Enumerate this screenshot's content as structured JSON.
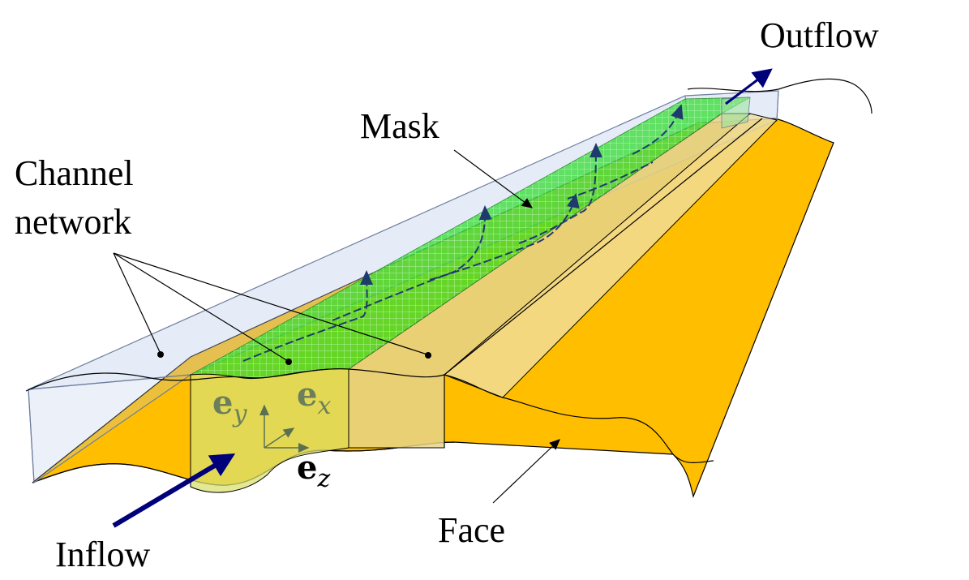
{
  "labels": {
    "outflow": "Outflow",
    "mask": "Mask",
    "channel_line1": "Channel",
    "channel_line2": "network",
    "inflow": "Inflow",
    "face": "Face"
  },
  "vectors": {
    "ey": {
      "base": "e",
      "sub": "y"
    },
    "ex": {
      "base": "e",
      "sub": "x"
    },
    "ez": {
      "base": "e",
      "sub": "z"
    }
  },
  "colors": {
    "face": "#FFBE00",
    "mask": "#33DD33",
    "mask_grid": "#C8F5C8",
    "channel": "#B4C6E7",
    "channel_stroke": "#6E7E9E",
    "inner_wall": "#E6D48A",
    "flow_arrow": "#00007A",
    "streamline": "#1F3B6E",
    "axes": "#5A7050",
    "vector_label": "#6C7E5A"
  }
}
